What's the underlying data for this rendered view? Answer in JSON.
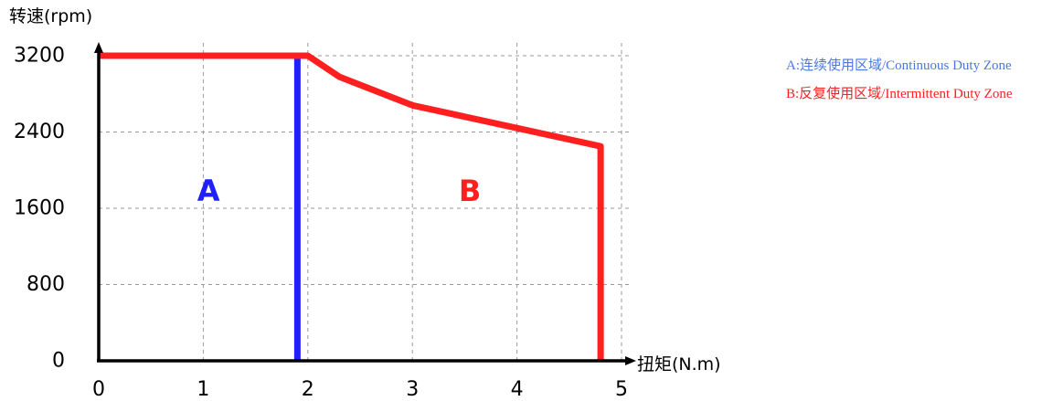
{
  "chart_data": {
    "type": "line",
    "ylabel": "转速(rpm)",
    "xlabel": "扭矩(N.m)",
    "xlim": [
      0,
      5
    ],
    "ylim": [
      0,
      3200
    ],
    "x_ticks": [
      "0",
      "1",
      "2",
      "3",
      "4",
      "5"
    ],
    "y_ticks": [
      "0",
      "800",
      "1600",
      "2400",
      "3200"
    ],
    "grid": true,
    "series": [
      {
        "name": "A:连续使用区域/Continuous Duty Zone",
        "color": "#1f1fff",
        "x": [
          1.9,
          1.9
        ],
        "y": [
          0,
          3200
        ]
      },
      {
        "name": "B:反复使用区域/Intermittent Duty Zone",
        "color": "#ff1f1f",
        "x": [
          0,
          2.0,
          2.3,
          3.0,
          4.8,
          4.8
        ],
        "y": [
          3200,
          3200,
          2980,
          2680,
          2250,
          0
        ]
      }
    ],
    "zones": [
      {
        "label": "A",
        "x": 1.05,
        "y": 1780,
        "color": "#1f1fff"
      },
      {
        "label": "B",
        "x": 3.55,
        "y": 1780,
        "color": "#ff1f1f"
      }
    ],
    "legend": {
      "position": "top-right",
      "items": [
        {
          "text": "A:连续使用区域/Continuous Duty Zone",
          "color": "#4a78e0"
        },
        {
          "text": "B:反复使用区域/Intermittent Duty Zone",
          "color": "#ff1f1f"
        }
      ]
    }
  }
}
